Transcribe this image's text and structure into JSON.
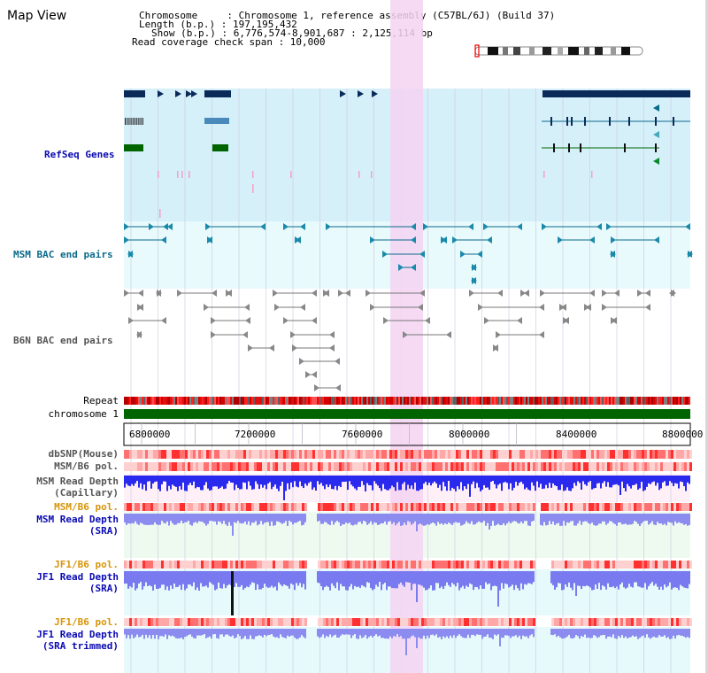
{
  "title": "Map View",
  "info": {
    "chromosome_line": "Chromosome     : Chromosome 1, reference assembly (C57BL/6J) (Build 37)",
    "length_line": "Length (b.p.) : 197,195,432",
    "show_line": "Show (b.p.) : 6,776,574-8,901,687 : 2,125,114 bp",
    "coverage_line": "Read coverage check span : 10,000"
  },
  "tracks": {
    "refseq": "RefSeq Genes",
    "msm_bac": "MSM BAC end pairs",
    "b6n_bac": "B6N BAC end pairs",
    "repeat": "Repeat",
    "chromosome": "chromosome 1",
    "dbsnp": "dbSNP(Mouse)",
    "msm_pol_1": "MSM/B6 pol.",
    "msm_depth_cap_1": "MSM Read Depth",
    "msm_depth_cap_2": "(Capillary)",
    "msm_pol_2": "MSM/B6 pol.",
    "msm_depth_sra_1": "MSM Read Depth",
    "msm_depth_sra_2": "(SRA)",
    "jf1_pol_1": "JF1/B6 pol.",
    "jf1_depth_sra_1": "JF1 Read Depth",
    "jf1_depth_sra_2": "(SRA)",
    "jf1_pol_2": "JF1/B6 pol.",
    "jf1_depth_trim_1": "JF1 Read Depth",
    "jf1_depth_trim_2": "(SRA trimmed)"
  },
  "axis": {
    "ticks": [
      "6800000",
      "7200000",
      "7600000",
      "8000000",
      "8400000",
      "8800000"
    ],
    "range_bp": [
      6776574,
      8901687
    ]
  },
  "colors": {
    "refseq_bg": "#d6f0fa",
    "bac_bg": "#e8fafc",
    "highlight": "#f5d3f2",
    "label_blue": "#0a0ab4",
    "label_orange": "#d8950a",
    "label_teal": "#0a6a8a",
    "chrom_green": "#006400",
    "depth_blue": "#4444ee",
    "snp_red": "#ff4a4a"
  }
}
